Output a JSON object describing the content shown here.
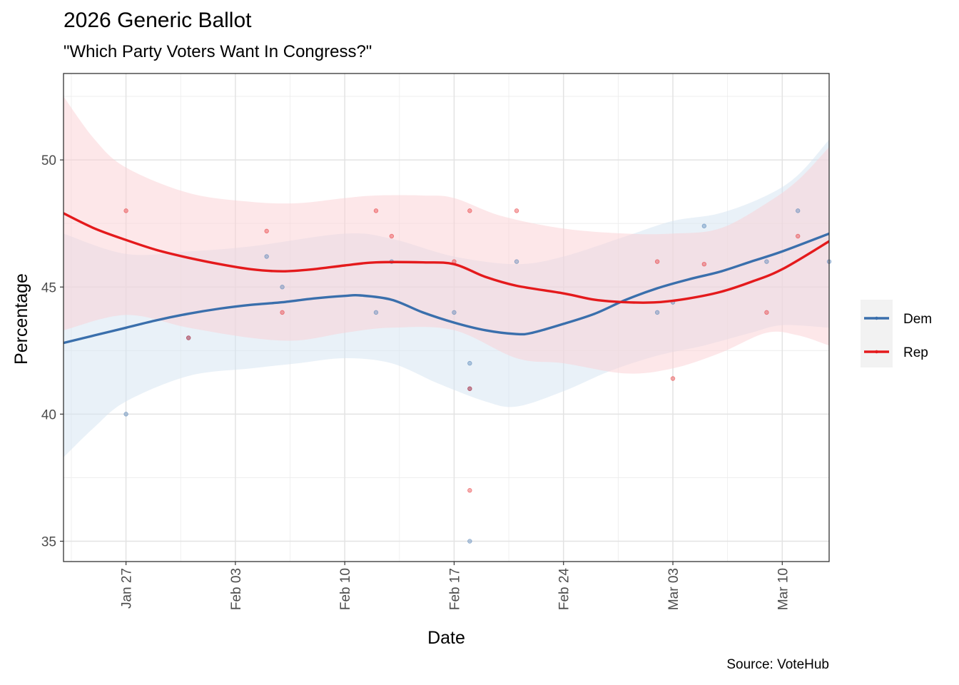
{
  "title": "2026 Generic Ballot",
  "subtitle": "\"Which Party Voters Want In Congress?\"",
  "caption": "Source: VoteHub",
  "chart_data": {
    "type": "scatter",
    "xlabel": "Date",
    "ylabel": "Percentage",
    "x_domain": [
      "2025-01-23",
      "2025-03-13"
    ],
    "ylim": [
      34.2,
      53.4
    ],
    "x_ticks": [
      {
        "date": "2025-01-27",
        "label": "Jan 27"
      },
      {
        "date": "2025-02-03",
        "label": "Feb 03"
      },
      {
        "date": "2025-02-10",
        "label": "Feb 10"
      },
      {
        "date": "2025-02-17",
        "label": "Feb 17"
      },
      {
        "date": "2025-02-24",
        "label": "Feb 24"
      },
      {
        "date": "2025-03-03",
        "label": "Mar 03"
      },
      {
        "date": "2025-03-10",
        "label": "Mar 10"
      }
    ],
    "y_ticks": [
      35,
      40,
      45,
      50
    ],
    "grid": true,
    "legend_position": "right",
    "series": [
      {
        "name": "Dem",
        "color": "#3a6fac",
        "points": [
          {
            "x": "2025-01-27",
            "y": 40
          },
          {
            "x": "2025-01-31",
            "y": 43
          },
          {
            "x": "2025-02-05",
            "y": 46.2
          },
          {
            "x": "2025-02-06",
            "y": 45
          },
          {
            "x": "2025-02-12",
            "y": 44
          },
          {
            "x": "2025-02-13",
            "y": 46
          },
          {
            "x": "2025-02-17",
            "y": 44
          },
          {
            "x": "2025-02-18",
            "y": 42
          },
          {
            "x": "2025-02-18",
            "y": 41
          },
          {
            "x": "2025-02-18",
            "y": 35
          },
          {
            "x": "2025-02-21",
            "y": 46
          },
          {
            "x": "2025-03-02",
            "y": 44
          },
          {
            "x": "2025-03-03",
            "y": 44.4
          },
          {
            "x": "2025-03-05",
            "y": 47.4
          },
          {
            "x": "2025-03-09",
            "y": 46
          },
          {
            "x": "2025-03-11",
            "y": 48
          },
          {
            "x": "2025-03-13",
            "y": 46
          }
        ],
        "trend": [
          {
            "x": "2025-01-23",
            "y": 42.8
          },
          {
            "x": "2025-01-25",
            "y": 43.1
          },
          {
            "x": "2025-01-27",
            "y": 43.4
          },
          {
            "x": "2025-01-29",
            "y": 43.7
          },
          {
            "x": "2025-01-31",
            "y": 43.95
          },
          {
            "x": "2025-02-02",
            "y": 44.15
          },
          {
            "x": "2025-02-04",
            "y": 44.3
          },
          {
            "x": "2025-02-06",
            "y": 44.4
          },
          {
            "x": "2025-02-08",
            "y": 44.55
          },
          {
            "x": "2025-02-10",
            "y": 44.65
          },
          {
            "x": "2025-02-11",
            "y": 44.67
          },
          {
            "x": "2025-02-13",
            "y": 44.5
          },
          {
            "x": "2025-02-15",
            "y": 44.0
          },
          {
            "x": "2025-02-17",
            "y": 43.6
          },
          {
            "x": "2025-02-19",
            "y": 43.3
          },
          {
            "x": "2025-02-21",
            "y": 43.15
          },
          {
            "x": "2025-02-22",
            "y": 43.2
          },
          {
            "x": "2025-02-24",
            "y": 43.55
          },
          {
            "x": "2025-02-26",
            "y": 43.95
          },
          {
            "x": "2025-02-28",
            "y": 44.5
          },
          {
            "x": "2025-03-02",
            "y": 44.95
          },
          {
            "x": "2025-03-04",
            "y": 45.3
          },
          {
            "x": "2025-03-06",
            "y": 45.6
          },
          {
            "x": "2025-03-08",
            "y": 46.0
          },
          {
            "x": "2025-03-10",
            "y": 46.4
          },
          {
            "x": "2025-03-13",
            "y": 47.1
          }
        ],
        "band_upper": [
          {
            "x": "2025-01-23",
            "y": 47.1
          },
          {
            "x": "2025-01-27",
            "y": 46.3
          },
          {
            "x": "2025-01-31",
            "y": 46.4
          },
          {
            "x": "2025-02-04",
            "y": 46.6
          },
          {
            "x": "2025-02-10",
            "y": 47.1
          },
          {
            "x": "2025-02-13",
            "y": 46.9
          },
          {
            "x": "2025-02-17",
            "y": 46.2
          },
          {
            "x": "2025-02-21",
            "y": 45.9
          },
          {
            "x": "2025-02-24",
            "y": 46.2
          },
          {
            "x": "2025-02-28",
            "y": 47.0
          },
          {
            "x": "2025-03-03",
            "y": 47.6
          },
          {
            "x": "2025-03-06",
            "y": 47.9
          },
          {
            "x": "2025-03-09",
            "y": 48.6
          },
          {
            "x": "2025-03-11",
            "y": 49.4
          },
          {
            "x": "2025-03-13",
            "y": 50.8
          }
        ],
        "band_lower": [
          {
            "x": "2025-01-23",
            "y": 38.3
          },
          {
            "x": "2025-01-25",
            "y": 39.5
          },
          {
            "x": "2025-01-27",
            "y": 40.5
          },
          {
            "x": "2025-01-31",
            "y": 41.5
          },
          {
            "x": "2025-02-04",
            "y": 41.8
          },
          {
            "x": "2025-02-07",
            "y": 42.0
          },
          {
            "x": "2025-02-10",
            "y": 42.2
          },
          {
            "x": "2025-02-13",
            "y": 42.0
          },
          {
            "x": "2025-02-16",
            "y": 41.2
          },
          {
            "x": "2025-02-19",
            "y": 40.5
          },
          {
            "x": "2025-02-21",
            "y": 40.3
          },
          {
            "x": "2025-02-24",
            "y": 40.9
          },
          {
            "x": "2025-02-27",
            "y": 41.7
          },
          {
            "x": "2025-03-02",
            "y": 42.3
          },
          {
            "x": "2025-03-05",
            "y": 42.7
          },
          {
            "x": "2025-03-08",
            "y": 43.2
          },
          {
            "x": "2025-03-10",
            "y": 43.5
          },
          {
            "x": "2025-03-13",
            "y": 43.4
          }
        ]
      },
      {
        "name": "Rep",
        "color": "#e41a1c",
        "points": [
          {
            "x": "2025-01-27",
            "y": 48
          },
          {
            "x": "2025-01-31",
            "y": 43
          },
          {
            "x": "2025-02-05",
            "y": 47.2
          },
          {
            "x": "2025-02-06",
            "y": 44
          },
          {
            "x": "2025-02-12",
            "y": 48
          },
          {
            "x": "2025-02-13",
            "y": 47
          },
          {
            "x": "2025-02-17",
            "y": 46
          },
          {
            "x": "2025-02-18",
            "y": 48
          },
          {
            "x": "2025-02-18",
            "y": 41
          },
          {
            "x": "2025-02-18",
            "y": 37
          },
          {
            "x": "2025-02-21",
            "y": 48
          },
          {
            "x": "2025-03-02",
            "y": 46
          },
          {
            "x": "2025-03-03",
            "y": 41.4
          },
          {
            "x": "2025-03-05",
            "y": 45.9
          },
          {
            "x": "2025-03-09",
            "y": 44
          },
          {
            "x": "2025-03-11",
            "y": 47
          }
        ],
        "trend": [
          {
            "x": "2025-01-23",
            "y": 47.9
          },
          {
            "x": "2025-01-25",
            "y": 47.3
          },
          {
            "x": "2025-01-27",
            "y": 46.85
          },
          {
            "x": "2025-01-29",
            "y": 46.45
          },
          {
            "x": "2025-01-31",
            "y": 46.15
          },
          {
            "x": "2025-02-02",
            "y": 45.9
          },
          {
            "x": "2025-02-04",
            "y": 45.7
          },
          {
            "x": "2025-02-06",
            "y": 45.62
          },
          {
            "x": "2025-02-08",
            "y": 45.7
          },
          {
            "x": "2025-02-10",
            "y": 45.85
          },
          {
            "x": "2025-02-12",
            "y": 45.97
          },
          {
            "x": "2025-02-15",
            "y": 45.97
          },
          {
            "x": "2025-02-17",
            "y": 45.9
          },
          {
            "x": "2025-02-19",
            "y": 45.4
          },
          {
            "x": "2025-02-21",
            "y": 45.05
          },
          {
            "x": "2025-02-24",
            "y": 44.75
          },
          {
            "x": "2025-02-26",
            "y": 44.5
          },
          {
            "x": "2025-02-28",
            "y": 44.4
          },
          {
            "x": "2025-03-02",
            "y": 44.4
          },
          {
            "x": "2025-03-04",
            "y": 44.55
          },
          {
            "x": "2025-03-06",
            "y": 44.8
          },
          {
            "x": "2025-03-08",
            "y": 45.2
          },
          {
            "x": "2025-03-10",
            "y": 45.7
          },
          {
            "x": "2025-03-13",
            "y": 46.8
          }
        ],
        "band_upper": [
          {
            "x": "2025-01-23",
            "y": 52.5
          },
          {
            "x": "2025-01-25",
            "y": 50.8
          },
          {
            "x": "2025-01-27",
            "y": 49.7
          },
          {
            "x": "2025-01-31",
            "y": 48.7
          },
          {
            "x": "2025-02-04",
            "y": 48.35
          },
          {
            "x": "2025-02-07",
            "y": 48.3
          },
          {
            "x": "2025-02-10",
            "y": 48.5
          },
          {
            "x": "2025-02-12",
            "y": 48.6
          },
          {
            "x": "2025-02-15",
            "y": 48.6
          },
          {
            "x": "2025-02-17",
            "y": 48.5
          },
          {
            "x": "2025-02-20",
            "y": 47.8
          },
          {
            "x": "2025-02-24",
            "y": 47.3
          },
          {
            "x": "2025-02-28",
            "y": 47.1
          },
          {
            "x": "2025-03-03",
            "y": 47.1
          },
          {
            "x": "2025-03-06",
            "y": 47.3
          },
          {
            "x": "2025-03-09",
            "y": 48.3
          },
          {
            "x": "2025-03-11",
            "y": 49.2
          },
          {
            "x": "2025-03-13",
            "y": 50.5
          }
        ],
        "band_lower": [
          {
            "x": "2025-01-23",
            "y": 43.3
          },
          {
            "x": "2025-01-27",
            "y": 43.9
          },
          {
            "x": "2025-01-31",
            "y": 43.4
          },
          {
            "x": "2025-02-04",
            "y": 43.0
          },
          {
            "x": "2025-02-07",
            "y": 42.9
          },
          {
            "x": "2025-02-10",
            "y": 43.2
          },
          {
            "x": "2025-02-13",
            "y": 43.4
          },
          {
            "x": "2025-02-17",
            "y": 43.3
          },
          {
            "x": "2025-02-21",
            "y": 42.2
          },
          {
            "x": "2025-02-24",
            "y": 42.0
          },
          {
            "x": "2025-02-28",
            "y": 41.6
          },
          {
            "x": "2025-03-03",
            "y": 41.8
          },
          {
            "x": "2025-03-06",
            "y": 42.4
          },
          {
            "x": "2025-03-09",
            "y": 43.2
          },
          {
            "x": "2025-03-11",
            "y": 43.1
          },
          {
            "x": "2025-03-13",
            "y": 42.7
          }
        ]
      }
    ]
  }
}
